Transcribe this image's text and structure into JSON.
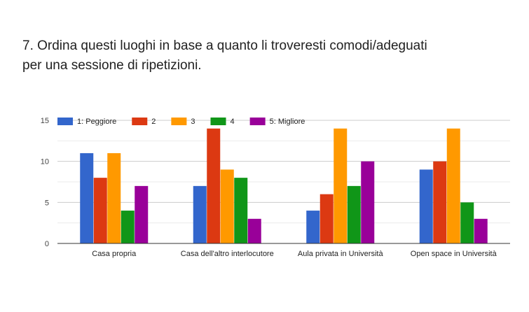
{
  "title_line1": "7. Ordina questi luoghi in base a quanto li troveresti comodi/adeguati",
  "title_line2": "per una sessione di ripetizioni.",
  "chart_data": {
    "type": "bar",
    "categories": [
      "Casa propria",
      "Casa dell'altro interlocutore",
      "Aula privata in Università",
      "Open space in Università"
    ],
    "series": [
      {
        "name": "1: Peggiore",
        "color": "#3366cc",
        "values": [
          11,
          7,
          4,
          9
        ]
      },
      {
        "name": "2",
        "color": "#dc3912",
        "values": [
          8,
          14,
          6,
          10
        ]
      },
      {
        "name": "3",
        "color": "#ff9900",
        "values": [
          11,
          9,
          14,
          14
        ]
      },
      {
        "name": "4",
        "color": "#109618",
        "values": [
          4,
          8,
          7,
          5
        ]
      },
      {
        "name": "5: Migliore",
        "color": "#990099",
        "values": [
          7,
          3,
          10,
          3
        ]
      }
    ],
    "ylim": [
      0,
      15
    ],
    "yticks": [
      0,
      5,
      10,
      15
    ],
    "legend_position": "top-left",
    "grid": true
  }
}
